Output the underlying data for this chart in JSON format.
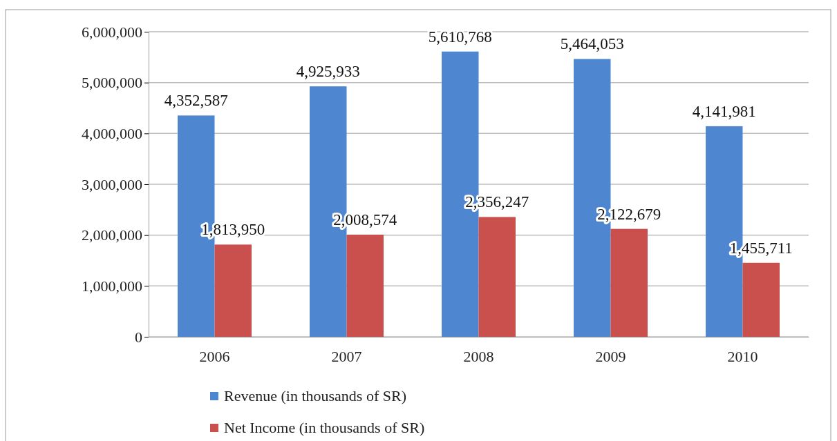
{
  "chart_data": {
    "type": "bar",
    "categories": [
      "2006",
      "2007",
      "2008",
      "2009",
      "2010"
    ],
    "series": [
      {
        "name": "Revenue (in thousands of SR)",
        "color": "#4f86d0",
        "values": [
          4352587,
          4925933,
          5610768,
          5464053,
          4141981
        ],
        "value_labels": [
          "4,352,587",
          "4,925,933",
          "5,610,768",
          "5,464,053",
          "4,141,981"
        ]
      },
      {
        "name": "Net Income (in thousands of SR)",
        "color": "#c9504c",
        "values": [
          1813950,
          2008574,
          2356247,
          2122679,
          1455711
        ],
        "value_labels": [
          "1,813,950",
          "2,008,574",
          "2,356,247",
          "2,122,679",
          "1,455,711"
        ]
      }
    ],
    "ylim": [
      0,
      6000000
    ],
    "yticks": [
      {
        "value": 0,
        "label": "0"
      },
      {
        "value": 1000000,
        "label": "1,000,000"
      },
      {
        "value": 2000000,
        "label": "2,000,000"
      },
      {
        "value": 3000000,
        "label": "3,000,000"
      },
      {
        "value": 4000000,
        "label": "4,000,000"
      },
      {
        "value": 5000000,
        "label": "5,000,000"
      },
      {
        "value": 6000000,
        "label": "6,000,000"
      }
    ],
    "grid": "y",
    "legend": "bottom"
  }
}
